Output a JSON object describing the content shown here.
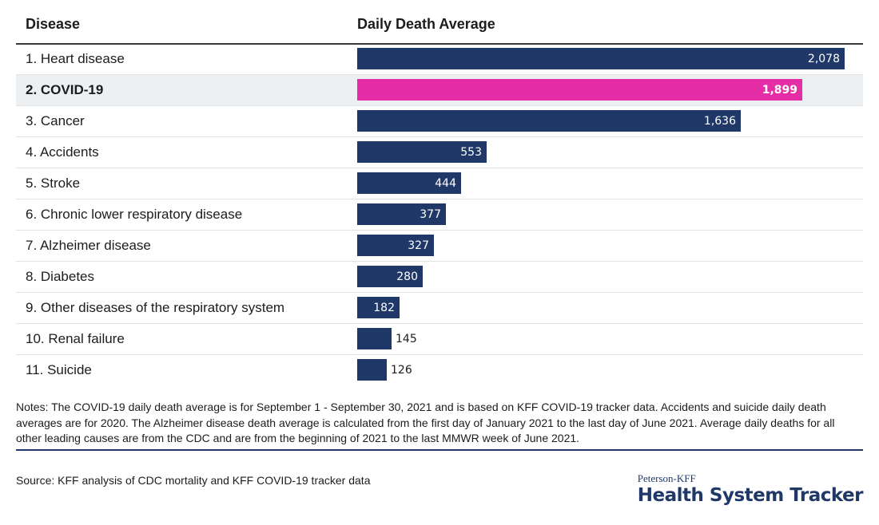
{
  "header": {
    "disease_label": "Disease",
    "value_label": "Daily Death Average"
  },
  "colors": {
    "bar": "#1f3868",
    "highlight_bar": "#e52ea6",
    "highlight_row_bg": "#edf0f2"
  },
  "chart_data": {
    "type": "bar",
    "orientation": "horizontal",
    "xlabel": "Daily Death Average",
    "ylabel": "Disease",
    "xlim": [
      0,
      2078
    ],
    "grid": false,
    "categories": [
      "1. Heart disease",
      "2. COVID-19",
      "3. Cancer",
      "4. Accidents",
      "5. Stroke",
      "6. Chronic lower respiratory disease",
      "7. Alzheimer disease",
      "8. Diabetes",
      "9. Other diseases of the respiratory system",
      "10. Renal failure",
      "11. Suicide"
    ],
    "values": [
      2078,
      1899,
      1636,
      553,
      444,
      377,
      327,
      280,
      182,
      145,
      126
    ],
    "value_labels": [
      "2,078",
      "1,899",
      "1,636",
      "553",
      "444",
      "377",
      "327",
      "280",
      "182",
      "145",
      "126"
    ],
    "highlight_index": 1
  },
  "notes": "Notes: The COVID-19 daily death average is for September 1 - September 30, 2021 and is based on KFF COVID-19 tracker data. Accidents and suicide daily death averages are for 2020. The Alzheimer disease death average is calculated from the first day of January 2021 to the last day of June 2021. Average daily deaths for all other leading causes are from the CDC and are from the beginning of 2021 to the last MMWR week of June 2021.",
  "source": "Source: KFF analysis of CDC mortality and KFF COVID-19 tracker data",
  "brand": {
    "top": "Peterson-KFF",
    "main": "Health System Tracker"
  }
}
